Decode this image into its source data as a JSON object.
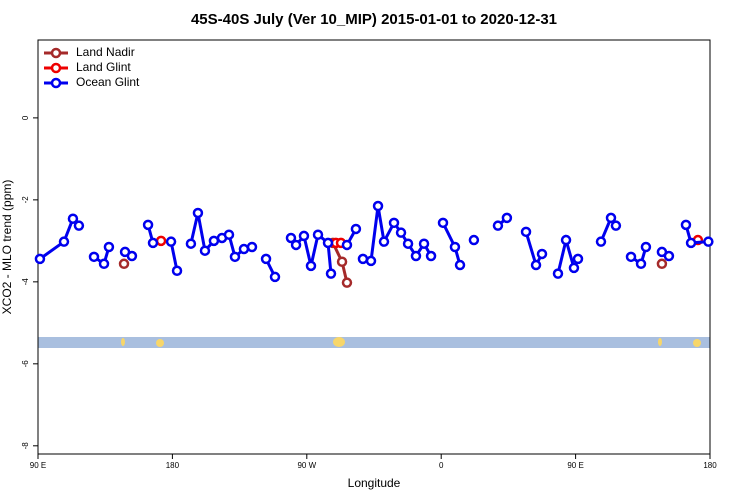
{
  "chart_data": {
    "type": "line",
    "title": "45S-40S July (Ver 10_MIP)   2015-01-01 to 2020-12-31",
    "xlabel": "Longitude",
    "ylabel": "XCO2 - MLO trend (ppm)",
    "xlim": [
      90,
      540
    ],
    "ylim": [
      -8.2,
      1.9
    ],
    "xticks": [
      {
        "value": 90,
        "label": "90 E"
      },
      180,
      {
        "value": 270,
        "label": "90 W"
      },
      {
        "value": 360,
        "label": "0"
      },
      {
        "value": 450,
        "label": "90 E"
      },
      {
        "value": 540,
        "label": "180"
      }
    ],
    "yticks": [
      0,
      -2,
      -4,
      -6,
      -8
    ],
    "legend": "top-left",
    "series": [
      {
        "name": "Land Nadir",
        "color": "#a52a2a",
        "x": [
          147.6,
          null,
          287.5,
          293.6,
          296.9,
          null,
          507.8
        ],
        "values": [
          -3.56,
          null,
          -3.05,
          -3.51,
          -4.02,
          null,
          -3.56
        ]
      },
      {
        "name": "Land Glint",
        "color": "#ee0000",
        "x": [
          172.4,
          null,
          289.5,
          292.9,
          null,
          531.9
        ],
        "values": [
          -3.0,
          null,
          -3.05,
          -3.05,
          null,
          -2.98
        ]
      },
      {
        "name": "Ocean Glint",
        "color": "#0000ee",
        "x": [
          91.3,
          107.4,
          113.4,
          117.4,
          null,
          127.5,
          134.2,
          137.5,
          null,
          148.3,
          152.9,
          null,
          163.7,
          167.0,
          null,
          179.1,
          183.1,
          null,
          192.4,
          197.1,
          201.8,
          207.8,
          213.2,
          217.9,
          221.9,
          227.9,
          233.3,
          null,
          242.7,
          248.7,
          null,
          259.4,
          262.8,
          268.1,
          272.8,
          277.5,
          284.2,
          286.2,
          null,
          296.9,
          302.9,
          null,
          307.6,
          313.0,
          317.7,
          321.7,
          328.4,
          333.1,
          337.8,
          343.1,
          348.5,
          353.2,
          null,
          361.2,
          369.2,
          372.6,
          null,
          381.9,
          null,
          398.0,
          404.0,
          null,
          416.8,
          423.5,
          427.5,
          null,
          438.2,
          443.6,
          448.9,
          451.6,
          null,
          467.0,
          473.7,
          477.0,
          null,
          487.1,
          493.8,
          497.1,
          null,
          507.8,
          512.5,
          null,
          523.9,
          527.3,
          538.9
        ],
        "values": [
          -3.44,
          -3.02,
          -2.46,
          -2.63,
          null,
          -3.39,
          -3.56,
          -3.15,
          null,
          -3.27,
          -3.37,
          null,
          -2.61,
          -3.05,
          null,
          -3.02,
          -3.73,
          null,
          -3.07,
          -2.32,
          -3.24,
          -3.0,
          -2.93,
          -2.85,
          -3.39,
          -3.2,
          -3.15,
          null,
          -3.44,
          -3.88,
          null,
          -2.93,
          -3.1,
          -2.88,
          -3.61,
          -2.85,
          -3.05,
          -3.8,
          null,
          -3.1,
          -2.71,
          null,
          -3.44,
          -3.49,
          -2.15,
          -3.02,
          -2.56,
          -2.8,
          -3.07,
          -3.37,
          -3.07,
          -3.37,
          null,
          -2.56,
          -3.15,
          -3.59,
          null,
          -2.98,
          null,
          -2.63,
          -2.44,
          null,
          -2.78,
          -3.59,
          -3.32,
          null,
          -3.8,
          -2.98,
          -3.66,
          -3.44,
          null,
          -3.02,
          -2.44,
          -2.63,
          null,
          -3.39,
          -3.56,
          -3.15,
          null,
          -3.27,
          -3.37,
          null,
          -2.61,
          -3.05,
          -3.02
        ]
      }
    ]
  }
}
